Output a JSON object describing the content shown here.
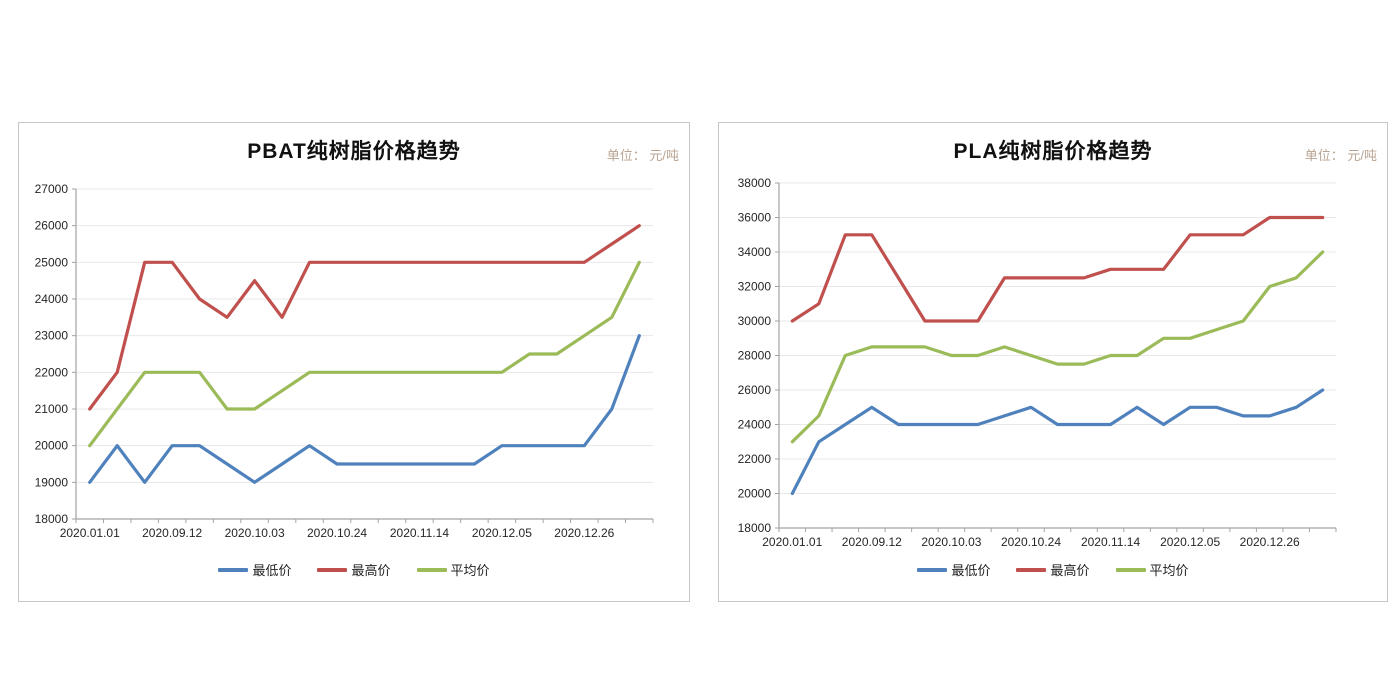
{
  "page": {
    "background": "#ffffff"
  },
  "colors": {
    "min_line": "#4f81bd",
    "max_line": "#c0504d",
    "avg_line": "#9bbb59",
    "gridline": "#e8e8e8",
    "axis": "#a3a3a3",
    "tick_label": "#262626",
    "title_text": "#111111",
    "unit_text": "#b9a493",
    "panel_border": "#c6c6c6"
  },
  "chart_data": [
    {
      "type": "line",
      "title": "PBAT纯树脂价格趋势",
      "unit_label": "单位： 元/吨",
      "x_count": 21,
      "x_tick_labels": [
        "2020.01.01",
        "2020.09.12",
        "2020.10.03",
        "2020.10.24",
        "2020.11.14",
        "2020.12.05",
        "2020.12.26"
      ],
      "x_label_indices": [
        0,
        3,
        6,
        9,
        12,
        15,
        18
      ],
      "ylim": [
        18000,
        27000
      ],
      "y_step": 1000,
      "grid": true,
      "legend_position": "bottom",
      "series": [
        {
          "name": "最低价",
          "color": "#4f81bd",
          "values": [
            19000,
            20000,
            19000,
            20000,
            20000,
            19500,
            19000,
            19500,
            20000,
            19500,
            19500,
            19500,
            19500,
            19500,
            19500,
            20000,
            20000,
            20000,
            20000,
            21000,
            23000
          ]
        },
        {
          "name": "最高价",
          "color": "#c0504d",
          "values": [
            21000,
            22000,
            25000,
            25000,
            24000,
            23500,
            24500,
            23500,
            25000,
            25000,
            25000,
            25000,
            25000,
            25000,
            25000,
            25000,
            25000,
            25000,
            25000,
            25500,
            26000
          ]
        },
        {
          "name": "平均价",
          "color": "#9bbb59",
          "values": [
            20000,
            21000,
            22000,
            22000,
            22000,
            21000,
            21000,
            21500,
            22000,
            22000,
            22000,
            22000,
            22000,
            22000,
            22000,
            22000,
            22500,
            22500,
            23000,
            23500,
            25000
          ]
        }
      ]
    },
    {
      "type": "line",
      "title": "PLA纯树脂价格趋势",
      "unit_label": "单位： 元/吨",
      "x_count": 21,
      "x_tick_labels": [
        "2020.01.01",
        "2020.09.12",
        "2020.10.03",
        "2020.10.24",
        "2020.11.14",
        "2020.12.05",
        "2020.12.26"
      ],
      "x_label_indices": [
        0,
        3,
        6,
        9,
        12,
        15,
        18
      ],
      "ylim": [
        18000,
        38000
      ],
      "y_step": 2000,
      "grid": true,
      "legend_position": "bottom",
      "series": [
        {
          "name": "最低价",
          "color": "#4f81bd",
          "values": [
            20000,
            23000,
            24000,
            25000,
            24000,
            24000,
            24000,
            24000,
            24500,
            25000,
            24000,
            24000,
            24000,
            25000,
            24000,
            25000,
            25000,
            24500,
            24500,
            25000,
            26000
          ]
        },
        {
          "name": "最高价",
          "color": "#c0504d",
          "values": [
            30000,
            31000,
            35000,
            35000,
            32500,
            30000,
            30000,
            30000,
            32500,
            32500,
            32500,
            32500,
            33000,
            33000,
            33000,
            35000,
            35000,
            35000,
            36000,
            36000,
            36000
          ]
        },
        {
          "name": "平均价",
          "color": "#9bbb59",
          "values": [
            23000,
            24500,
            28000,
            28500,
            28500,
            28500,
            28000,
            28000,
            28500,
            28000,
            27500,
            27500,
            28000,
            28000,
            29000,
            29000,
            29500,
            30000,
            32000,
            32500,
            34000
          ]
        }
      ]
    }
  ]
}
